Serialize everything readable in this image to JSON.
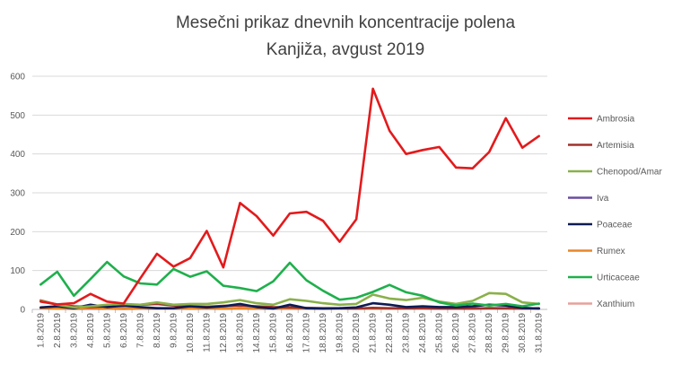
{
  "chart_data": {
    "type": "line",
    "title": "Mesečni prikaz dnevnih koncentracije polena",
    "subtitle": "Kanjiža, avgust 2019",
    "xlabel": "",
    "ylabel": "",
    "ylim": [
      0,
      600
    ],
    "yticks": [
      0,
      100,
      200,
      300,
      400,
      500,
      600
    ],
    "grid": true,
    "legend_position": "right",
    "categories": [
      "1.8.2019",
      "2.8.2019",
      "3.8.2019",
      "4.8.2019",
      "5.8.2019",
      "6.8.2019",
      "7.8.2019",
      "8.8.2019",
      "9.8.2019",
      "10.8.2019",
      "11.8.2019",
      "12.8.2019",
      "13.8.2019",
      "14.8.2019",
      "15.8.2019",
      "16.8.2019",
      "17.8.2019",
      "18.8.2019",
      "19.8.2019",
      "20.8.2019",
      "21.8.2019",
      "22.8.2019",
      "23.8.2019",
      "24.8.2019",
      "25.8.2019",
      "26.8.2019",
      "27.8.2019",
      "28.8.2019",
      "29.8.2019",
      "30.8.2019",
      "31.8.2019"
    ],
    "series": [
      {
        "name": "Ambrosia",
        "color": "#e31a1c",
        "values": [
          20,
          13,
          16,
          40,
          20,
          15,
          80,
          143,
          110,
          132,
          202,
          108,
          274,
          240,
          190,
          247,
          251,
          228,
          174,
          232,
          568,
          460,
          400,
          410,
          418,
          365,
          363,
          405,
          492,
          416,
          446
        ]
      },
      {
        "name": "Artemisia",
        "color": "#a0322c",
        "values": [
          23,
          12,
          8,
          6,
          8,
          9,
          12,
          14,
          10,
          8,
          7,
          9,
          10,
          8,
          6,
          5,
          4,
          3,
          3,
          2,
          4,
          3,
          3,
          3,
          2,
          2,
          2,
          3,
          3,
          2,
          3
        ]
      },
      {
        "name": "Chenopod/Amar",
        "color": "#8ab04a",
        "values": [
          22,
          12,
          5,
          8,
          12,
          14,
          12,
          18,
          12,
          14,
          14,
          18,
          24,
          16,
          12,
          26,
          22,
          16,
          12,
          14,
          38,
          28,
          24,
          30,
          20,
          14,
          22,
          42,
          40,
          18,
          14
        ]
      },
      {
        "name": "Iva",
        "color": "#6a4ea0",
        "values": [
          3,
          3,
          2,
          2,
          2,
          2,
          2,
          3,
          2,
          2,
          2,
          2,
          3,
          2,
          2,
          2,
          2,
          2,
          2,
          2,
          3,
          2,
          2,
          3,
          2,
          2,
          2,
          3,
          2,
          2,
          2
        ]
      },
      {
        "name": "Poaceae",
        "color": "#0d1b54",
        "values": [
          5,
          8,
          3,
          12,
          6,
          10,
          6,
          3,
          3,
          8,
          5,
          8,
          14,
          6,
          2,
          12,
          3,
          2,
          3,
          5,
          16,
          12,
          6,
          8,
          6,
          6,
          8,
          12,
          10,
          4,
          2
        ]
      },
      {
        "name": "Rumex",
        "color": "#e8862a",
        "values": [
          3,
          2,
          2,
          3,
          2,
          2,
          2,
          2,
          2,
          2,
          2,
          2,
          3,
          2,
          2,
          2,
          2,
          2,
          2,
          2,
          2,
          2,
          2,
          3,
          2,
          2,
          2,
          3,
          2,
          2,
          2
        ]
      },
      {
        "name": "Urticaceae",
        "color": "#1fb04c",
        "values": [
          64,
          97,
          35,
          78,
          122,
          85,
          67,
          64,
          104,
          84,
          98,
          61,
          55,
          47,
          72,
          120,
          75,
          48,
          25,
          30,
          45,
          63,
          44,
          35,
          18,
          10,
          15,
          10,
          14,
          8,
          15
        ]
      },
      {
        "name": "Xanthium",
        "color": "#e8a09a",
        "values": [
          2,
          2,
          1,
          2,
          2,
          1,
          2,
          2,
          2,
          2,
          2,
          2,
          3,
          2,
          2,
          2,
          2,
          2,
          2,
          2,
          3,
          2,
          2,
          2,
          2,
          2,
          2,
          3,
          2,
          2,
          2
        ]
      }
    ]
  }
}
